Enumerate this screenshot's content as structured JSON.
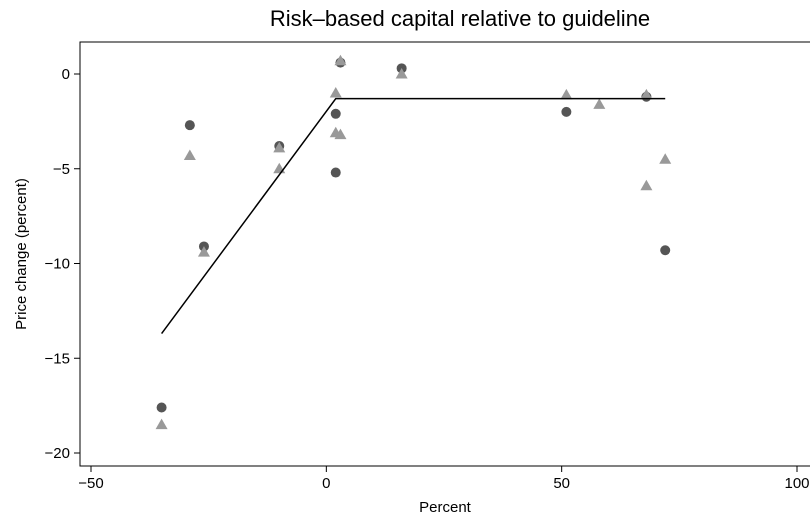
{
  "chart_data": {
    "type": "scatter",
    "title": "Risk–based capital relative to guideline",
    "xlabel": "Percent",
    "ylabel": "Price change (percent)",
    "xlim": [
      -50,
      100
    ],
    "ylim": [
      -20,
      0
    ],
    "x_ticks": [
      -50,
      0,
      50,
      100
    ],
    "y_ticks": [
      0,
      -5,
      -10,
      -15,
      -20
    ],
    "grid": false,
    "legend": "none",
    "series": [
      {
        "marker": "circle",
        "color": "#555555",
        "points": [
          [
            -35,
            -17.6
          ],
          [
            -29,
            -2.7
          ],
          [
            -26,
            -9.1
          ],
          [
            -10,
            -3.8
          ],
          [
            2,
            -2.1
          ],
          [
            2,
            -5.2
          ],
          [
            3,
            0.6
          ],
          [
            16,
            0.3
          ],
          [
            51,
            -2.0
          ],
          [
            68,
            -1.2
          ],
          [
            72,
            -9.3
          ]
        ]
      },
      {
        "marker": "triangle",
        "color": "#999999",
        "points": [
          [
            -35,
            -18.5
          ],
          [
            -29,
            -4.3
          ],
          [
            -26,
            -9.4
          ],
          [
            -10,
            -3.9
          ],
          [
            -10,
            -5.0
          ],
          [
            2,
            -1.0
          ],
          [
            2,
            -3.1
          ],
          [
            3,
            -3.2
          ],
          [
            3,
            0.7
          ],
          [
            16,
            0.0
          ],
          [
            51,
            -1.1
          ],
          [
            58,
            -1.6
          ],
          [
            68,
            -1.1
          ],
          [
            68,
            -5.9
          ],
          [
            72,
            -4.5
          ]
        ]
      },
      {
        "type": "line",
        "color": "#000000",
        "points": [
          [
            -35,
            -13.7
          ],
          [
            2,
            -1.3
          ],
          [
            72,
            -1.3
          ]
        ]
      }
    ]
  }
}
